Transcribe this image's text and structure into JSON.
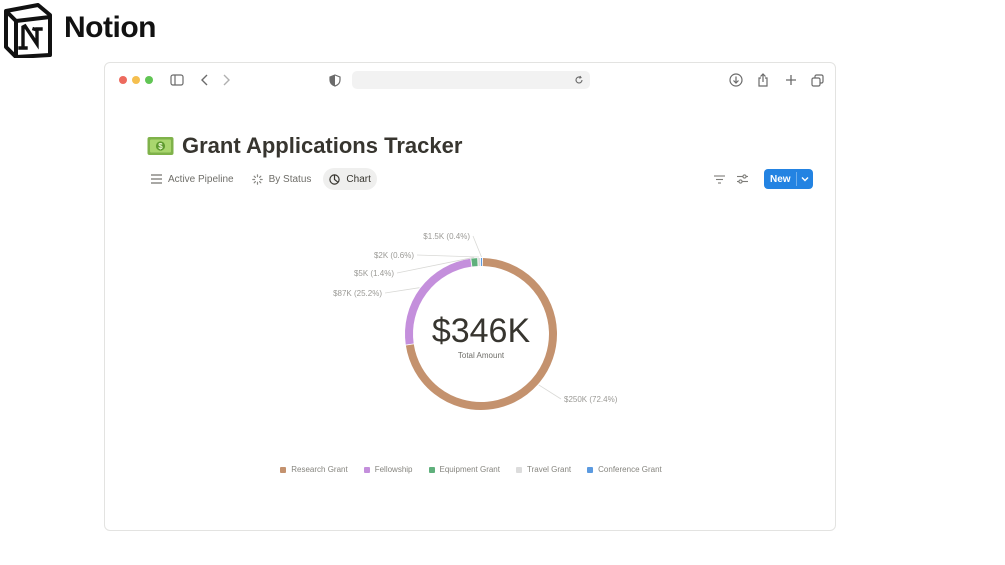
{
  "brand": {
    "name": "Notion"
  },
  "browser": {
    "url": ""
  },
  "page": {
    "emoji": "money-bill-icon",
    "title": "Grant Applications Tracker"
  },
  "views": [
    {
      "label": "Active Pipeline",
      "icon": "list-icon",
      "active": false
    },
    {
      "label": "By Status",
      "icon": "loader-icon",
      "active": false
    },
    {
      "label": "Chart",
      "icon": "pie-chart-icon",
      "active": true
    }
  ],
  "toolbar": {
    "new_label": "New"
  },
  "chart_data": {
    "type": "pie",
    "subtype": "donut",
    "center_value": "$346K",
    "center_label": "Total Amount",
    "categories": [
      "Research Grant",
      "Fellowship",
      "Equipment Grant",
      "Travel Grant",
      "Conference Grant"
    ],
    "values": [
      250000,
      87000,
      5000,
      2000,
      1500
    ],
    "percents": [
      72.4,
      25.2,
      1.4,
      0.6,
      0.4
    ],
    "data_labels": [
      "$250K (72.4%)",
      "$87K (25.2%)",
      "$5K (1.4%)",
      "$2K (0.6%)",
      "$1.5K (0.4%)"
    ],
    "colors": [
      "#c4926e",
      "#c48fdc",
      "#5fb07c",
      "#dcdcdc",
      "#5b9ae0"
    ],
    "legend_position": "bottom"
  }
}
